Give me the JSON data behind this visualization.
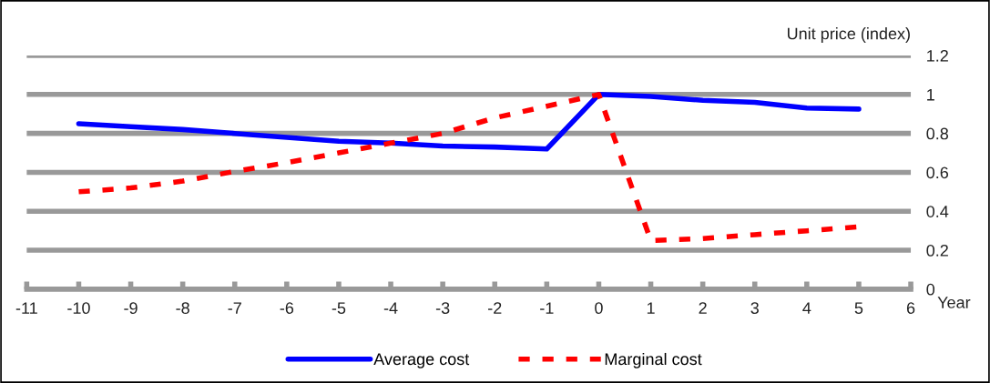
{
  "chart_data": {
    "type": "line",
    "ylabel": "Unit price (index)",
    "xlabel": "Year",
    "x": [
      -10,
      -9,
      -8,
      -7,
      -6,
      -5,
      -4,
      -3,
      -2,
      -1,
      0,
      1,
      2,
      3,
      4,
      5
    ],
    "series": [
      {
        "name": "Average cost",
        "color": "#0000ff",
        "line_style": "solid",
        "values": [
          0.85,
          0.835,
          0.82,
          0.8,
          0.78,
          0.76,
          0.75,
          0.735,
          0.73,
          0.72,
          1.0,
          0.99,
          0.97,
          0.96,
          0.93,
          0.925
        ]
      },
      {
        "name": "Marginal cost",
        "color": "#ff0000",
        "line_style": "dashed",
        "values": [
          0.5,
          0.52,
          0.555,
          0.605,
          0.65,
          0.7,
          0.75,
          0.8,
          0.88,
          0.94,
          1.0,
          0.25,
          0.26,
          0.28,
          0.3,
          0.32
        ]
      }
    ],
    "xlim": [
      -11,
      6
    ],
    "xticks": [
      -11,
      -10,
      -9,
      -8,
      -7,
      -6,
      -5,
      -4,
      -3,
      -2,
      -1,
      0,
      1,
      2,
      3,
      4,
      5,
      6
    ],
    "ylim": [
      0,
      1.2
    ],
    "yticks": [
      0,
      0.2,
      0.4,
      0.6,
      0.8,
      1,
      1.2
    ],
    "grid": "y",
    "legend": "bottom",
    "marker": "none"
  }
}
